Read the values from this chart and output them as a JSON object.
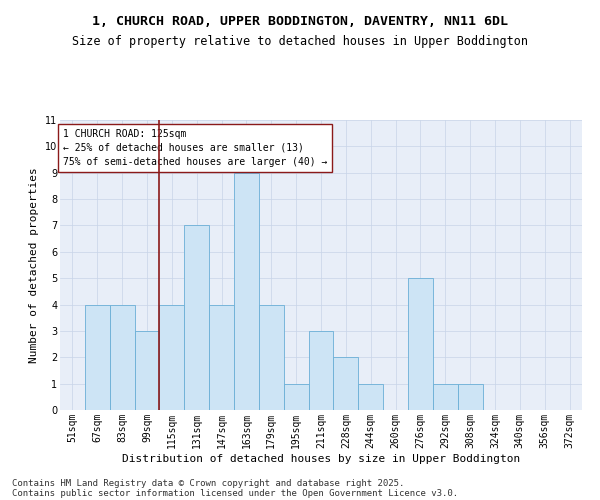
{
  "title": "1, CHURCH ROAD, UPPER BODDINGTON, DAVENTRY, NN11 6DL",
  "subtitle": "Size of property relative to detached houses in Upper Boddington",
  "xlabel": "Distribution of detached houses by size in Upper Boddington",
  "ylabel": "Number of detached properties",
  "footer1": "Contains HM Land Registry data © Crown copyright and database right 2025.",
  "footer2": "Contains public sector information licensed under the Open Government Licence v3.0.",
  "annotation_line1": "1 CHURCH ROAD: 125sqm",
  "annotation_line2": "← 25% of detached houses are smaller (13)",
  "annotation_line3": "75% of semi-detached houses are larger (40) →",
  "vline_x": 4.0,
  "bar_color": "#cde4f5",
  "bar_edgecolor": "#6aaed6",
  "vline_color": "#8b1a1a",
  "categories": [
    "51sqm",
    "67sqm",
    "83sqm",
    "99sqm",
    "115sqm",
    "131sqm",
    "147sqm",
    "163sqm",
    "179sqm",
    "195sqm",
    "211sqm",
    "228sqm",
    "244sqm",
    "260sqm",
    "276sqm",
    "292sqm",
    "308sqm",
    "324sqm",
    "340sqm",
    "356sqm",
    "372sqm"
  ],
  "values": [
    0,
    4,
    4,
    3,
    4,
    7,
    4,
    9,
    4,
    1,
    3,
    2,
    1,
    0,
    5,
    1,
    1,
    0,
    0,
    0,
    0
  ],
  "ylim": [
    0,
    11
  ],
  "yticks": [
    0,
    1,
    2,
    3,
    4,
    5,
    6,
    7,
    8,
    9,
    10,
    11
  ],
  "grid_color": "#c8d4e8",
  "bg_color": "#e8eef8",
  "title_fontsize": 9.5,
  "subtitle_fontsize": 8.5,
  "ylabel_fontsize": 8,
  "xlabel_fontsize": 8,
  "tick_fontsize": 7,
  "annotation_fontsize": 7,
  "footer_fontsize": 6.5
}
